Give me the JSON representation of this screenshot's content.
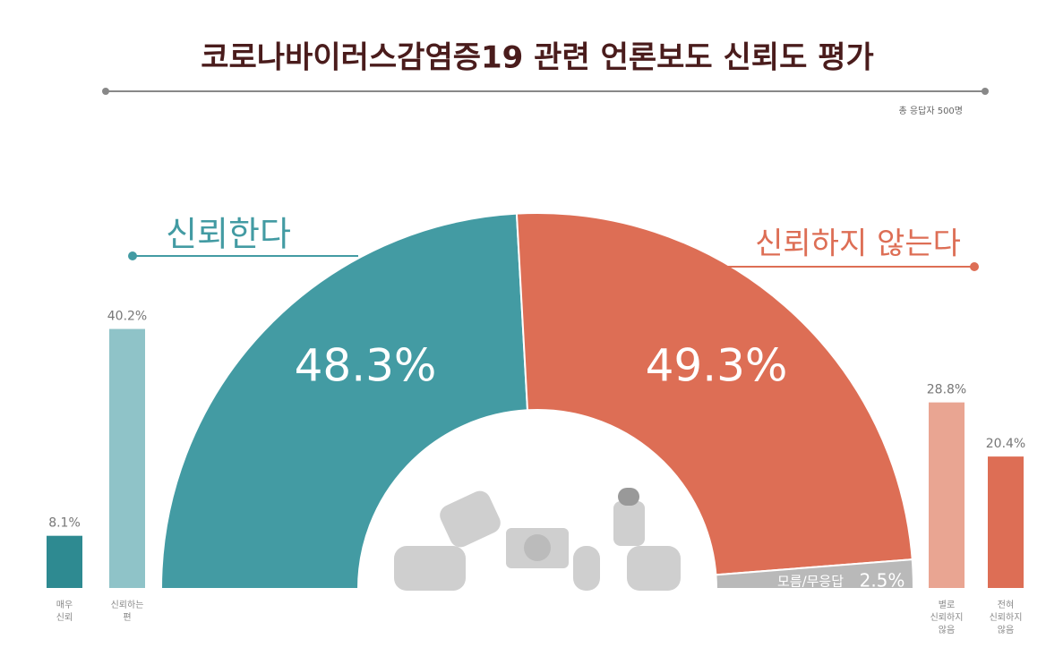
{
  "chart_data": [
    {
      "type": "half-donut",
      "title": "코로나바이러스감염증19 관련 언론보도 신뢰도 평가",
      "subtitle": "총 응답자 500명",
      "categories": [
        "신뢰한다",
        "신뢰하지 않는다",
        "모름/무응답"
      ],
      "values": [
        48.3,
        49.3,
        2.5
      ],
      "value_labels": [
        "48.3%",
        "49.3%",
        "2.5%"
      ],
      "colors": [
        "#439ba3",
        "#dd6e55",
        "#b9b9b9"
      ]
    },
    {
      "type": "bar",
      "categories": [
        "매우 신뢰",
        "신뢰하는 편",
        "별로 신뢰하지 않음",
        "전혀 신뢰하지 않음"
      ],
      "values": [
        8.1,
        40.2,
        28.8,
        20.4
      ],
      "value_labels": [
        "8.1%",
        "40.2%",
        "28.8%",
        "20.4%"
      ],
      "colors": [
        "#2e8a91",
        "#8fc3c8",
        "#e9a592",
        "#dd6e55"
      ]
    }
  ]
}
